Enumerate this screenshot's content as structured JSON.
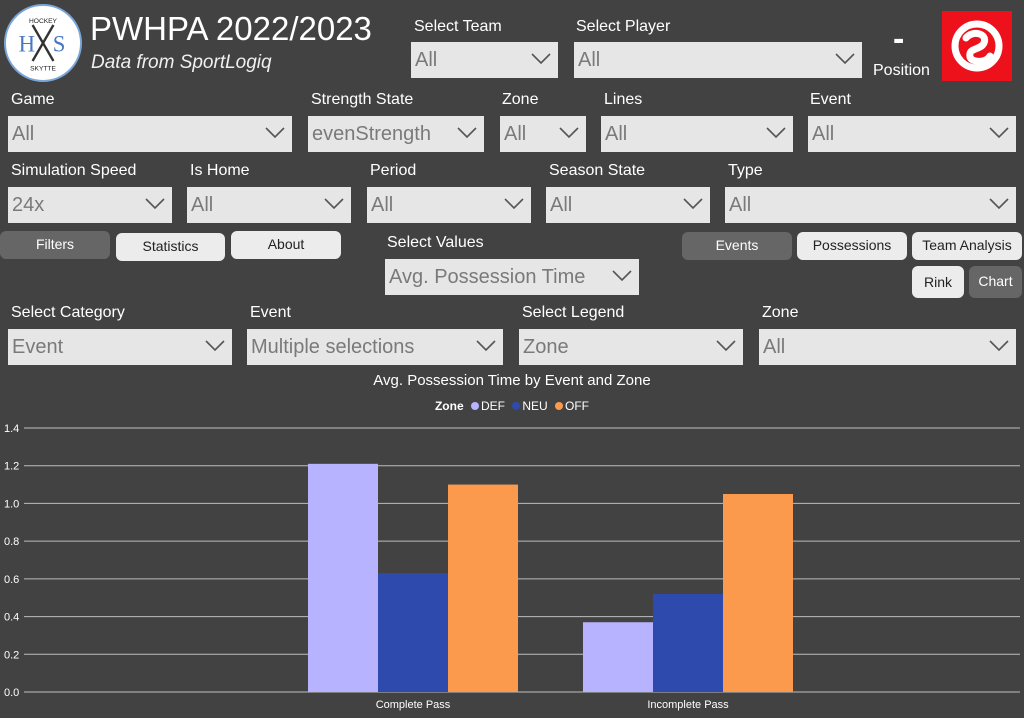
{
  "header": {
    "logo_text": {
      "top": "HOCKEY",
      "left": "H",
      "right": "S",
      "bottom": "SKYTTE"
    },
    "title": "PWHPA 2022/2023",
    "subtitle": "Data from SportLogiq",
    "position_value": "-",
    "position_label": "Position"
  },
  "filters": {
    "select_team": {
      "label": "Select Team",
      "value": "All"
    },
    "select_player": {
      "label": "Select Player",
      "value": "All"
    },
    "game": {
      "label": "Game",
      "value": "All"
    },
    "strength_state": {
      "label": "Strength State",
      "value": "evenStrength"
    },
    "zone": {
      "label": "Zone",
      "value": "All"
    },
    "lines": {
      "label": "Lines",
      "value": "All"
    },
    "event": {
      "label": "Event",
      "value": "All"
    },
    "simulation_speed": {
      "label": "Simulation Speed",
      "value": "24x"
    },
    "is_home": {
      "label": "Is Home",
      "value": "All"
    },
    "period": {
      "label": "Period",
      "value": "All"
    },
    "season_state": {
      "label": "Season State",
      "value": "All"
    },
    "type": {
      "label": "Type",
      "value": "All"
    }
  },
  "tabs": {
    "filters": "Filters",
    "statistics": "Statistics",
    "about": "About",
    "events": "Events",
    "possessions": "Possessions",
    "team_analysis": "Team Analysis",
    "rink": "Rink",
    "chart": "Chart"
  },
  "select_values": {
    "label": "Select Values",
    "value": "Avg. Possession Time"
  },
  "chart_filters": {
    "select_category": {
      "label": "Select Category",
      "value": "Event"
    },
    "event": {
      "label": "Event",
      "value": "Multiple selections"
    },
    "select_legend": {
      "label": "Select Legend",
      "value": "Zone"
    },
    "zone": {
      "label": "Zone",
      "value": "All"
    }
  },
  "colors": {
    "background": "#424242",
    "brand_red": "#ec111a",
    "def": "#b7b3ff",
    "neu": "#2f4aad",
    "off": "#fb9a4c"
  },
  "chart_data": {
    "type": "bar",
    "title": "Avg. Possession Time by Event and Zone",
    "legend_title": "Zone",
    "legend_position": "top-center",
    "categories": [
      "Complete Pass",
      "Incomplete Pass"
    ],
    "series": [
      {
        "name": "DEF",
        "color": "#b7b3ff",
        "values": [
          1.21,
          0.37
        ]
      },
      {
        "name": "NEU",
        "color": "#2f4aad",
        "values": [
          0.63,
          0.52
        ]
      },
      {
        "name": "OFF",
        "color": "#fb9a4c",
        "values": [
          1.1,
          1.05
        ]
      }
    ],
    "y_ticks": [
      "0.0",
      "0.2",
      "0.4",
      "0.6",
      "0.8",
      "1.0",
      "1.2",
      "1.4"
    ],
    "ylim": [
      0,
      1.4
    ],
    "grid": true
  }
}
